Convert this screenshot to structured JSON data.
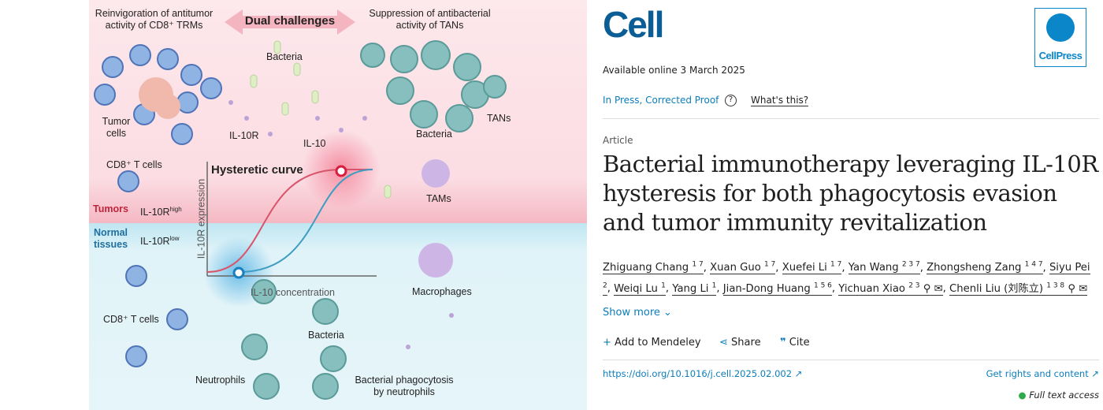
{
  "figure": {
    "top_left": "Reinvigoration of antitumor activity of CD8⁺ TRMs",
    "center": "Dual challenges",
    "top_right": "Suppression of antibacterial activity of TANs",
    "bacteria": "Bacteria",
    "tumor_cells": "Tumor cells",
    "il10r": "IL-10R",
    "il10": "IL-10",
    "cd8_top": "CD8⁺ T cells",
    "bacteria_right": "Bacteria",
    "tans": "TANs",
    "tams": "TAMs",
    "hysteretic": "Hysteretic curve",
    "tumors": "Tumors",
    "il10r_high": "IL-10R",
    "high_sup": "high",
    "normal": "Normal tissues",
    "il10r_low": "IL-10R",
    "low_sup": "low",
    "y_axis": "IL-10R expression",
    "x_axis": "IL-10 concentration",
    "macrophages": "Macrophages",
    "cd8_bottom": "CD8⁺ T cells",
    "bacteria_bottom": "Bacteria",
    "neutrophils": "Neutrophils",
    "phago": "Bacterial phagocytosis by neutrophils",
    "colors": {
      "pink_bg": "#fde6ea",
      "blue_bg": "#dff3f8",
      "red_curve": "#d8546a",
      "blue_curve": "#3d9dc2"
    }
  },
  "journal": {
    "logo": "Cell",
    "publisher": "CellPress",
    "brand_color": "#0a5d95"
  },
  "available": "Available online 3 March 2025",
  "status": "In Press, Corrected Proof",
  "whats_this": "What's this?",
  "type": "Article",
  "title": "Bacterial immunotherapy leveraging IL-10R hysteresis for both phagocytosis evasion and tumor immunity revitalization",
  "authors": [
    {
      "name": "Zhiguang Chang",
      "sup": "1 7"
    },
    {
      "name": "Xuan Guo",
      "sup": "1 7"
    },
    {
      "name": "Xuefei Li",
      "sup": "1 7"
    },
    {
      "name": "Yan Wang",
      "sup": "2 3 7"
    },
    {
      "name": "Zhongsheng Zang",
      "sup": "1 4 7"
    },
    {
      "name": "Siyu Pei",
      "sup": "2"
    },
    {
      "name": "Weiqi Lu",
      "sup": "1"
    },
    {
      "name": "Yang Li",
      "sup": "1"
    },
    {
      "name": "Jian-Dong Huang",
      "sup": "1 5 6"
    },
    {
      "name": "Yichuan Xiao",
      "sup": "2 3"
    },
    {
      "name": "Chenli Liu (刘陈立)",
      "sup": "1 3 8"
    }
  ],
  "show_more": "Show more",
  "actions": {
    "mendeley": "Add to Mendeley",
    "share": "Share",
    "cite": "Cite"
  },
  "doi": "https://doi.org/10.1016/j.cell.2025.02.002",
  "rights": "Get rights and content",
  "access": "Full text access"
}
